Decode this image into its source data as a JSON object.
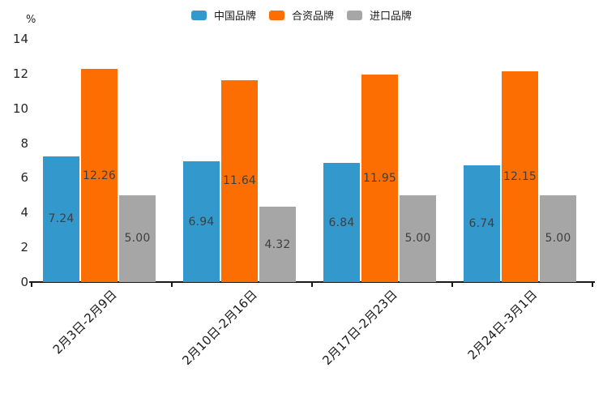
{
  "chart_data": {
    "type": "bar",
    "unit_label": "%",
    "categories": [
      "2月3日-2月9日",
      "2月10日-2月16日",
      "2月17日-2月23日",
      "2月24日-3月1日"
    ],
    "series": [
      {
        "name": "中国品牌",
        "color": "#3398CC",
        "values": [
          7.24,
          6.94,
          6.84,
          6.74
        ]
      },
      {
        "name": "合资品牌",
        "color": "#FC6E01",
        "values": [
          12.26,
          11.64,
          11.95,
          12.15
        ]
      },
      {
        "name": "进口品牌",
        "color": "#A6A6A6",
        "values": [
          5.0,
          4.32,
          5.0,
          5.0
        ]
      }
    ],
    "ylim": [
      0,
      14
    ],
    "yticks": [
      0,
      2,
      4,
      6,
      8,
      10,
      12,
      14
    ],
    "value_label_decimals": 2,
    "legend_position": "top",
    "grid": false,
    "colors": {
      "axis": "#1a1a1a",
      "tick_label": "#262626",
      "value_label": "#3f3f3f"
    }
  }
}
